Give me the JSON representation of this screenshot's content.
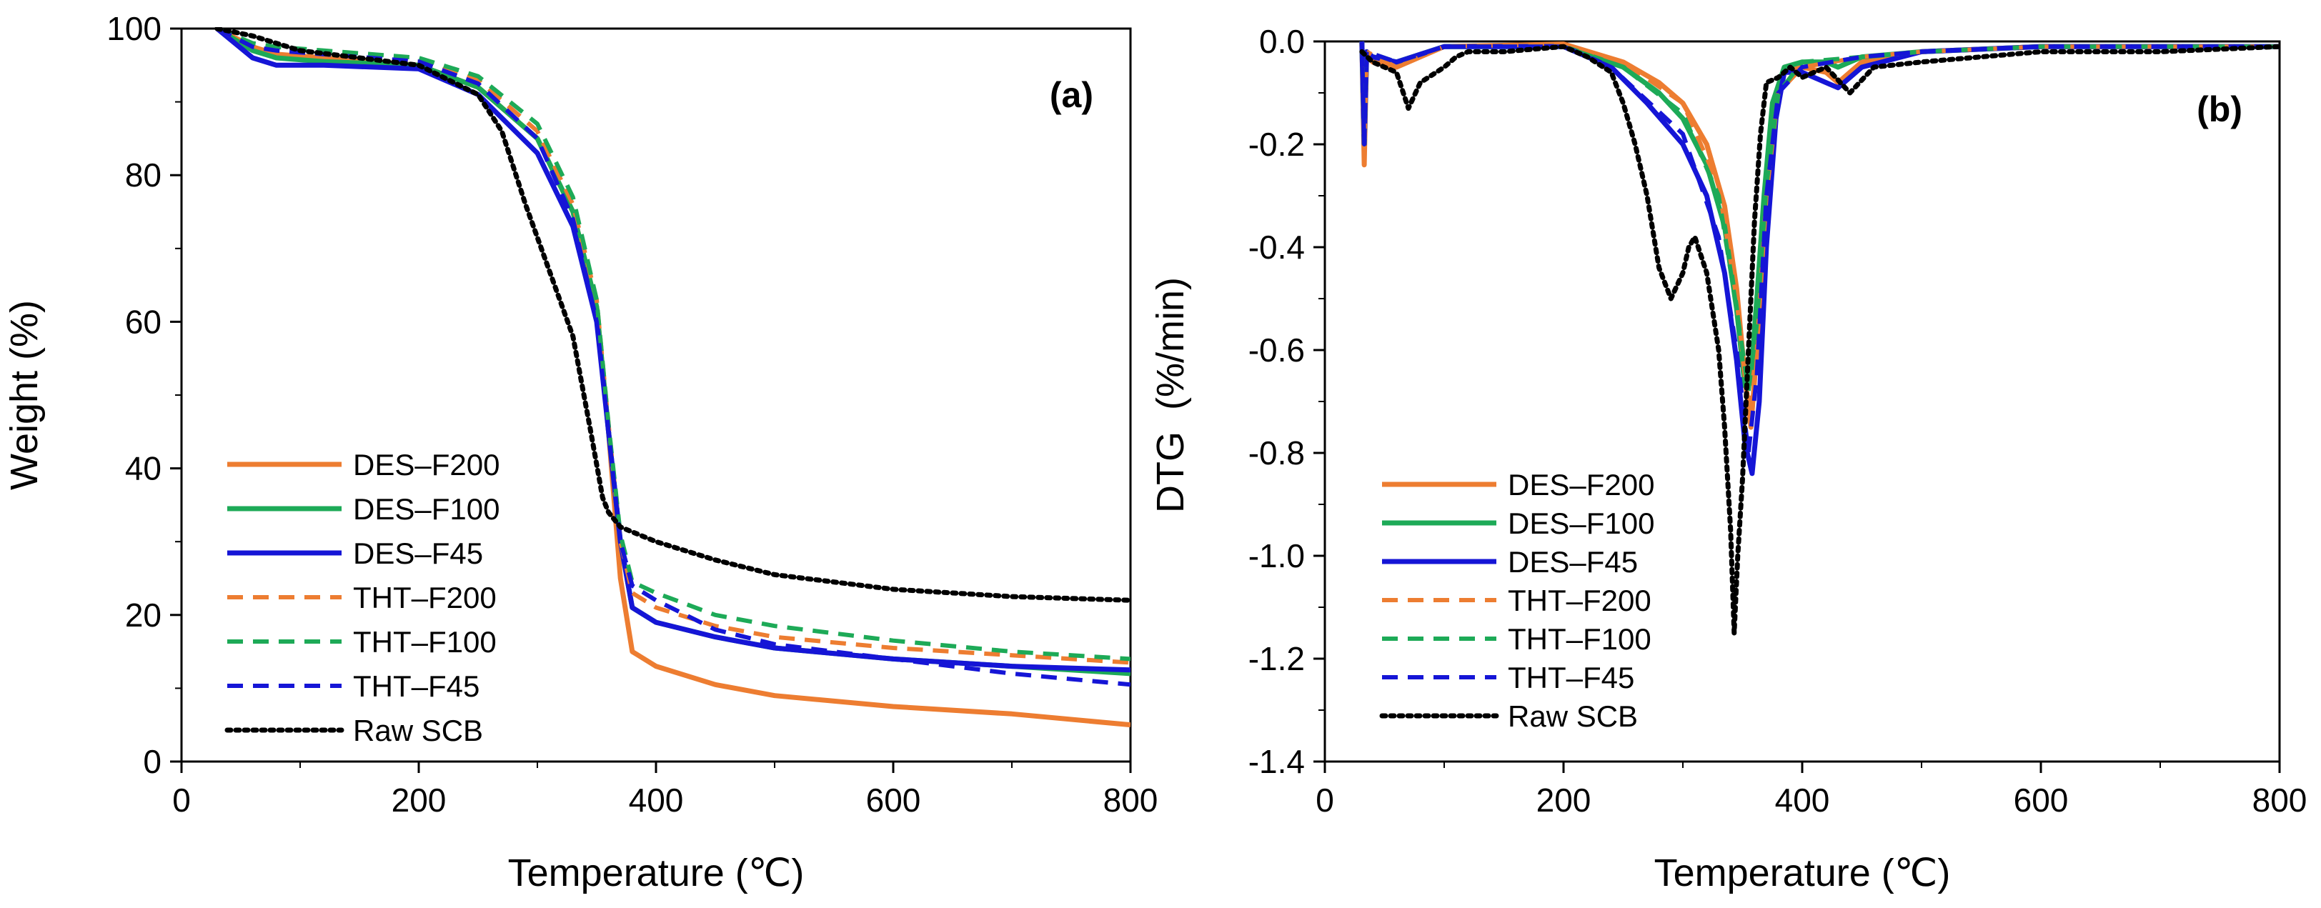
{
  "chart_data": [
    {
      "id": "a",
      "type": "line",
      "panel_label": "(a)",
      "xlabel": "Temperature (℃)",
      "ylabel": "Weight (%)",
      "xlim": [
        0,
        800
      ],
      "ylim": [
        0,
        100
      ],
      "x_ticks": [
        "0",
        "200",
        "400",
        "600",
        "800"
      ],
      "y_ticks": [
        "0",
        "20",
        "40",
        "60",
        "80",
        "100"
      ],
      "grid": false,
      "legend_position": "lower-left",
      "series": [
        {
          "name": "DES–F200",
          "color": "#ED7D31",
          "dash": "solid",
          "x": [
            30,
            60,
            80,
            120,
            200,
            250,
            300,
            330,
            350,
            360,
            370,
            380,
            400,
            450,
            500,
            600,
            700,
            800
          ],
          "y": [
            100,
            97.5,
            96.5,
            96,
            95,
            92,
            85,
            75,
            62,
            45,
            25,
            15,
            13,
            10.5,
            9,
            7.5,
            6.5,
            5
          ]
        },
        {
          "name": "DES–F100",
          "color": "#1DAA57",
          "dash": "solid",
          "x": [
            30,
            60,
            80,
            120,
            200,
            250,
            300,
            330,
            350,
            360,
            370,
            380,
            400,
            450,
            500,
            600,
            700,
            800
          ],
          "y": [
            100,
            97,
            96,
            95.5,
            95,
            92,
            85,
            75,
            62,
            45,
            30,
            21,
            19,
            17,
            15.5,
            14,
            13,
            12
          ]
        },
        {
          "name": "DES–F45",
          "color": "#1515D6",
          "dash": "solid",
          "x": [
            30,
            60,
            80,
            120,
            200,
            250,
            300,
            330,
            350,
            360,
            370,
            380,
            400,
            450,
            500,
            600,
            700,
            800
          ],
          "y": [
            100,
            96,
            95,
            95,
            94.5,
            91,
            83,
            73,
            60,
            45,
            30,
            21,
            19,
            17,
            15.5,
            14,
            13,
            12.5
          ]
        },
        {
          "name": "THT–F200",
          "color": "#ED7D31",
          "dash": "dashed",
          "x": [
            30,
            60,
            80,
            120,
            200,
            250,
            300,
            330,
            350,
            360,
            370,
            380,
            400,
            450,
            500,
            600,
            700,
            800
          ],
          "y": [
            100,
            97.5,
            97,
            96.5,
            95.5,
            93,
            86,
            76,
            63,
            46,
            30,
            23,
            21,
            18.5,
            17,
            15.5,
            14.5,
            13.5
          ]
        },
        {
          "name": "THT–F100",
          "color": "#1DAA57",
          "dash": "dashed",
          "x": [
            30,
            60,
            80,
            120,
            200,
            250,
            300,
            330,
            350,
            360,
            370,
            380,
            400,
            450,
            500,
            600,
            700,
            800
          ],
          "y": [
            100,
            98,
            97.5,
            97,
            96,
            93.5,
            87,
            77,
            63,
            46,
            31,
            24.5,
            23,
            20,
            18.5,
            16.5,
            15,
            14
          ]
        },
        {
          "name": "THT–F45",
          "color": "#1515D6",
          "dash": "dashed",
          "x": [
            30,
            60,
            80,
            120,
            200,
            250,
            300,
            330,
            350,
            360,
            370,
            380,
            400,
            450,
            500,
            600,
            700,
            800
          ],
          "y": [
            100,
            97.5,
            97,
            96.5,
            95.5,
            92.5,
            85,
            74,
            60,
            45,
            30,
            24,
            22,
            18,
            16,
            14,
            12,
            10.5
          ]
        },
        {
          "name": "Raw SCB",
          "color": "#000000",
          "dash": "dotted",
          "x": [
            30,
            60,
            100,
            150,
            200,
            250,
            270,
            290,
            310,
            330,
            345,
            355,
            360,
            370,
            400,
            450,
            500,
            600,
            700,
            800
          ],
          "y": [
            100,
            99,
            97,
            96,
            95,
            91,
            86,
            76,
            67,
            58,
            45,
            36,
            34,
            32,
            30,
            27.5,
            25.5,
            23.5,
            22.5,
            22
          ]
        }
      ]
    },
    {
      "id": "b",
      "type": "line",
      "panel_label": "(b)",
      "xlabel": "Temperature (℃)",
      "ylabel": "DTG  (%/min)",
      "xlim": [
        0,
        800
      ],
      "ylim": [
        -1.4,
        0.0
      ],
      "x_ticks": [
        "0",
        "200",
        "400",
        "600",
        "800"
      ],
      "y_ticks": [
        "0.0",
        "-0.2",
        "-0.4",
        "-0.6",
        "-0.8",
        "-1.0",
        "-1.2",
        "-1.4"
      ],
      "grid": false,
      "legend_position": "lower-left",
      "series": [
        {
          "name": "DES–F200",
          "color": "#ED7D31",
          "dash": "solid",
          "x": [
            31,
            33,
            35,
            40,
            60,
            100,
            200,
            250,
            280,
            300,
            320,
            335,
            345,
            352,
            357,
            362,
            368,
            375,
            385,
            400,
            420,
            430,
            450,
            500,
            600,
            800
          ],
          "y": [
            0,
            -0.24,
            -0.02,
            -0.04,
            -0.05,
            -0.01,
            -0.005,
            -0.04,
            -0.08,
            -0.12,
            -0.2,
            -0.32,
            -0.48,
            -0.65,
            -0.75,
            -0.6,
            -0.35,
            -0.15,
            -0.06,
            -0.05,
            -0.06,
            -0.08,
            -0.04,
            -0.02,
            -0.01,
            -0.01
          ]
        },
        {
          "name": "DES–F100",
          "color": "#1DAA57",
          "dash": "solid",
          "x": [
            31,
            33,
            35,
            40,
            60,
            100,
            200,
            250,
            280,
            300,
            320,
            335,
            345,
            352,
            357,
            362,
            368,
            375,
            385,
            400,
            420,
            430,
            450,
            500,
            600,
            800
          ],
          "y": [
            0,
            -0.2,
            -0.02,
            -0.03,
            -0.04,
            -0.01,
            -0.01,
            -0.05,
            -0.1,
            -0.15,
            -0.24,
            -0.36,
            -0.52,
            -0.67,
            -0.65,
            -0.5,
            -0.3,
            -0.12,
            -0.05,
            -0.04,
            -0.04,
            -0.05,
            -0.03,
            -0.02,
            -0.01,
            -0.01
          ]
        },
        {
          "name": "DES–F45",
          "color": "#1515D6",
          "dash": "solid",
          "x": [
            31,
            33,
            35,
            40,
            60,
            100,
            200,
            240,
            270,
            300,
            320,
            335,
            345,
            352,
            358,
            364,
            370,
            378,
            385,
            400,
            420,
            430,
            450,
            500,
            600,
            800
          ],
          "y": [
            0,
            -0.2,
            -0.02,
            -0.03,
            -0.04,
            -0.01,
            -0.01,
            -0.05,
            -0.12,
            -0.2,
            -0.3,
            -0.45,
            -0.62,
            -0.78,
            -0.84,
            -0.7,
            -0.4,
            -0.15,
            -0.06,
            -0.06,
            -0.08,
            -0.09,
            -0.05,
            -0.02,
            -0.01,
            -0.01
          ]
        },
        {
          "name": "THT–F200",
          "color": "#ED7D31",
          "dash": "dashed",
          "x": [
            31,
            33,
            35,
            60,
            100,
            200,
            250,
            300,
            330,
            345,
            355,
            362,
            370,
            380,
            400,
            450,
            500,
            600,
            800
          ],
          "y": [
            0,
            -0.22,
            -0.02,
            -0.05,
            -0.01,
            -0.005,
            -0.04,
            -0.12,
            -0.28,
            -0.5,
            -0.72,
            -0.6,
            -0.3,
            -0.1,
            -0.05,
            -0.03,
            -0.02,
            -0.01,
            -0.01
          ]
        },
        {
          "name": "THT–F100",
          "color": "#1DAA57",
          "dash": "dashed",
          "x": [
            31,
            33,
            35,
            60,
            100,
            200,
            250,
            300,
            330,
            345,
            355,
            362,
            370,
            380,
            400,
            450,
            500,
            600,
            800
          ],
          "y": [
            0,
            -0.2,
            -0.02,
            -0.04,
            -0.01,
            -0.01,
            -0.05,
            -0.14,
            -0.3,
            -0.52,
            -0.68,
            -0.55,
            -0.28,
            -0.1,
            -0.04,
            -0.03,
            -0.02,
            -0.01,
            -0.01
          ]
        },
        {
          "name": "THT–F45",
          "color": "#1515D6",
          "dash": "dashed",
          "x": [
            31,
            33,
            35,
            60,
            100,
            200,
            240,
            300,
            330,
            345,
            355,
            362,
            370,
            380,
            400,
            450,
            500,
            600,
            800
          ],
          "y": [
            0,
            -0.2,
            -0.02,
            -0.04,
            -0.01,
            -0.01,
            -0.05,
            -0.18,
            -0.38,
            -0.6,
            -0.8,
            -0.65,
            -0.3,
            -0.1,
            -0.05,
            -0.03,
            -0.02,
            -0.01,
            -0.01
          ]
        },
        {
          "name": "Raw SCB",
          "color": "#000000",
          "dash": "dotted",
          "x": [
            31,
            40,
            60,
            70,
            80,
            100,
            110,
            120,
            150,
            200,
            220,
            240,
            250,
            260,
            270,
            280,
            290,
            300,
            305,
            310,
            320,
            330,
            335,
            340,
            343,
            346,
            350,
            355,
            360,
            365,
            370,
            380,
            390,
            400,
            420,
            440,
            460,
            500,
            600,
            700,
            800
          ],
          "y": [
            -0.02,
            -0.04,
            -0.06,
            -0.13,
            -0.08,
            -0.05,
            -0.03,
            -0.02,
            -0.02,
            -0.01,
            -0.03,
            -0.06,
            -0.12,
            -0.2,
            -0.3,
            -0.44,
            -0.5,
            -0.45,
            -0.4,
            -0.38,
            -0.45,
            -0.6,
            -0.75,
            -0.95,
            -1.15,
            -1.0,
            -0.85,
            -0.6,
            -0.35,
            -0.18,
            -0.08,
            -0.07,
            -0.05,
            -0.07,
            -0.05,
            -0.1,
            -0.05,
            -0.04,
            -0.02,
            -0.02,
            -0.01
          ]
        }
      ]
    }
  ]
}
